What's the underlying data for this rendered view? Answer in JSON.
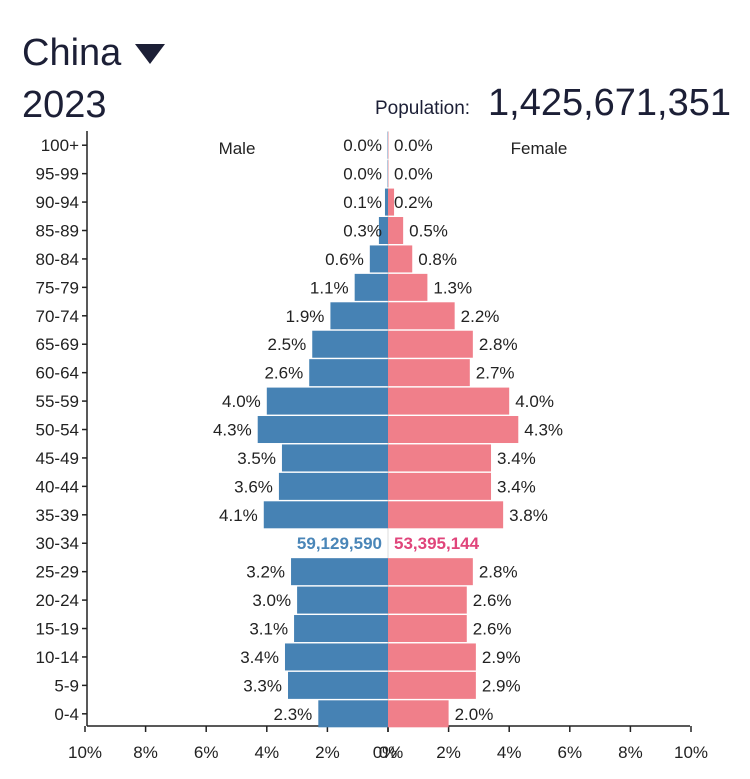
{
  "header": {
    "country": "China",
    "year": "2023",
    "population_label": "Population:",
    "population_value": "1,425,671,351"
  },
  "colors": {
    "male": "#4682b4",
    "female": "#f07f8a",
    "male_label": "#4a86b8",
    "female_label": "#e0457b",
    "title": "#1c1f36"
  },
  "chart_data": {
    "type": "bar",
    "orientation": "horizontal-population-pyramid",
    "categories": [
      "100+",
      "95-99",
      "90-94",
      "85-89",
      "80-84",
      "75-79",
      "70-74",
      "65-69",
      "60-64",
      "55-59",
      "50-54",
      "45-49",
      "40-44",
      "35-39",
      "30-34",
      "25-29",
      "20-24",
      "15-19",
      "10-14",
      "5-9",
      "0-4"
    ],
    "series": [
      {
        "name": "Male",
        "values": [
          0.0,
          0.0,
          0.1,
          0.3,
          0.6,
          1.1,
          1.9,
          2.5,
          2.6,
          4.0,
          4.3,
          3.5,
          3.6,
          4.1,
          null,
          3.2,
          3.0,
          3.1,
          3.4,
          3.3,
          2.3
        ],
        "labels": [
          "0.0%",
          "0.0%",
          "0.1%",
          "0.3%",
          "0.6%",
          "1.1%",
          "1.9%",
          "2.5%",
          "2.6%",
          "4.0%",
          "4.3%",
          "3.5%",
          "3.6%",
          "4.1%",
          "",
          "3.2%",
          "3.0%",
          "3.1%",
          "3.4%",
          "3.3%",
          "2.3%"
        ]
      },
      {
        "name": "Female",
        "values": [
          0.0,
          0.0,
          0.2,
          0.5,
          0.8,
          1.3,
          2.2,
          2.8,
          2.7,
          4.0,
          4.3,
          3.4,
          3.4,
          3.8,
          null,
          2.8,
          2.6,
          2.6,
          2.9,
          2.9,
          2.0
        ],
        "labels": [
          "0.0%",
          "0.0%",
          "0.2%",
          "0.5%",
          "0.8%",
          "1.3%",
          "2.2%",
          "2.8%",
          "2.7%",
          "4.0%",
          "4.3%",
          "3.4%",
          "3.4%",
          "3.8%",
          "",
          "2.8%",
          "2.6%",
          "2.6%",
          "2.9%",
          "2.9%",
          "2.0%"
        ]
      }
    ],
    "highlight": {
      "category": "30-34",
      "male_count": "59,129,590",
      "female_count": "53,395,144"
    },
    "xlim": [
      -10,
      10
    ],
    "xticks": [
      "10%",
      "8%",
      "6%",
      "4%",
      "2%",
      "0%",
      "0%",
      "2%",
      "4%",
      "6%",
      "8%",
      "10%"
    ],
    "bar_heights_by_value": {
      "0.0": 0.4,
      "0.1": 2.6,
      "0.2": 5.2
    },
    "legend": [
      "Male",
      "Female"
    ],
    "grid": false
  }
}
